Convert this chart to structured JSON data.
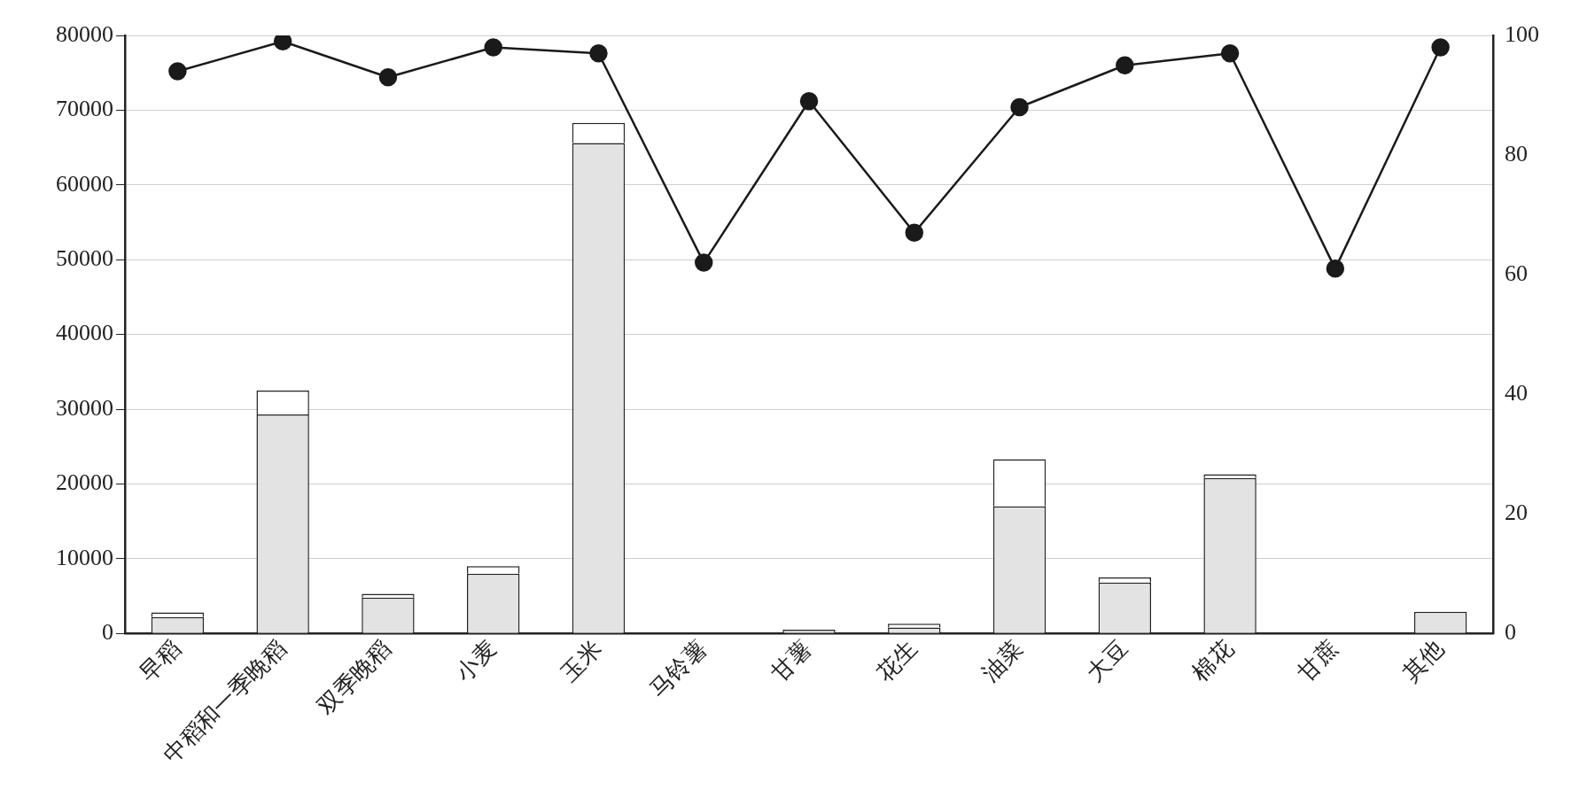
{
  "chart_data": {
    "type": "bar",
    "stacked": true,
    "categories": [
      "早稻",
      "中稻和一季晚稻",
      "双季晚稻",
      "小麦",
      "玉米",
      "马铃薯",
      "甘薯",
      "花生",
      "油菜",
      "大豆",
      "棉花",
      "甘蔗",
      "其他"
    ],
    "series": [
      {
        "color": "#e3e3e3",
        "values": [
          2200,
          29300,
          4800,
          8000,
          65600,
          null,
          500,
          800,
          17000,
          6800,
          20800,
          null,
          2900
        ]
      },
      {
        "color": "#ffffff",
        "values": [
          600,
          3200,
          500,
          1000,
          2700,
          null,
          null,
          500,
          6300,
          700,
          500,
          null,
          null
        ]
      },
      {
        "type": "line",
        "axis": "y2",
        "color": "#1a1a1a",
        "values": [
          94,
          99,
          93,
          98,
          97,
          62,
          89,
          67,
          88,
          95,
          97,
          61,
          98
        ]
      }
    ],
    "ylim": [
      0,
      80000
    ],
    "yticks": [
      0,
      10000,
      20000,
      30000,
      40000,
      50000,
      60000,
      70000,
      80000
    ],
    "y2lim": [
      0,
      100
    ],
    "y2ticks": [
      0,
      20,
      40,
      60,
      80,
      100
    ],
    "grid": "y",
    "legend": false,
    "marker": "circle",
    "line_style": "solid"
  }
}
